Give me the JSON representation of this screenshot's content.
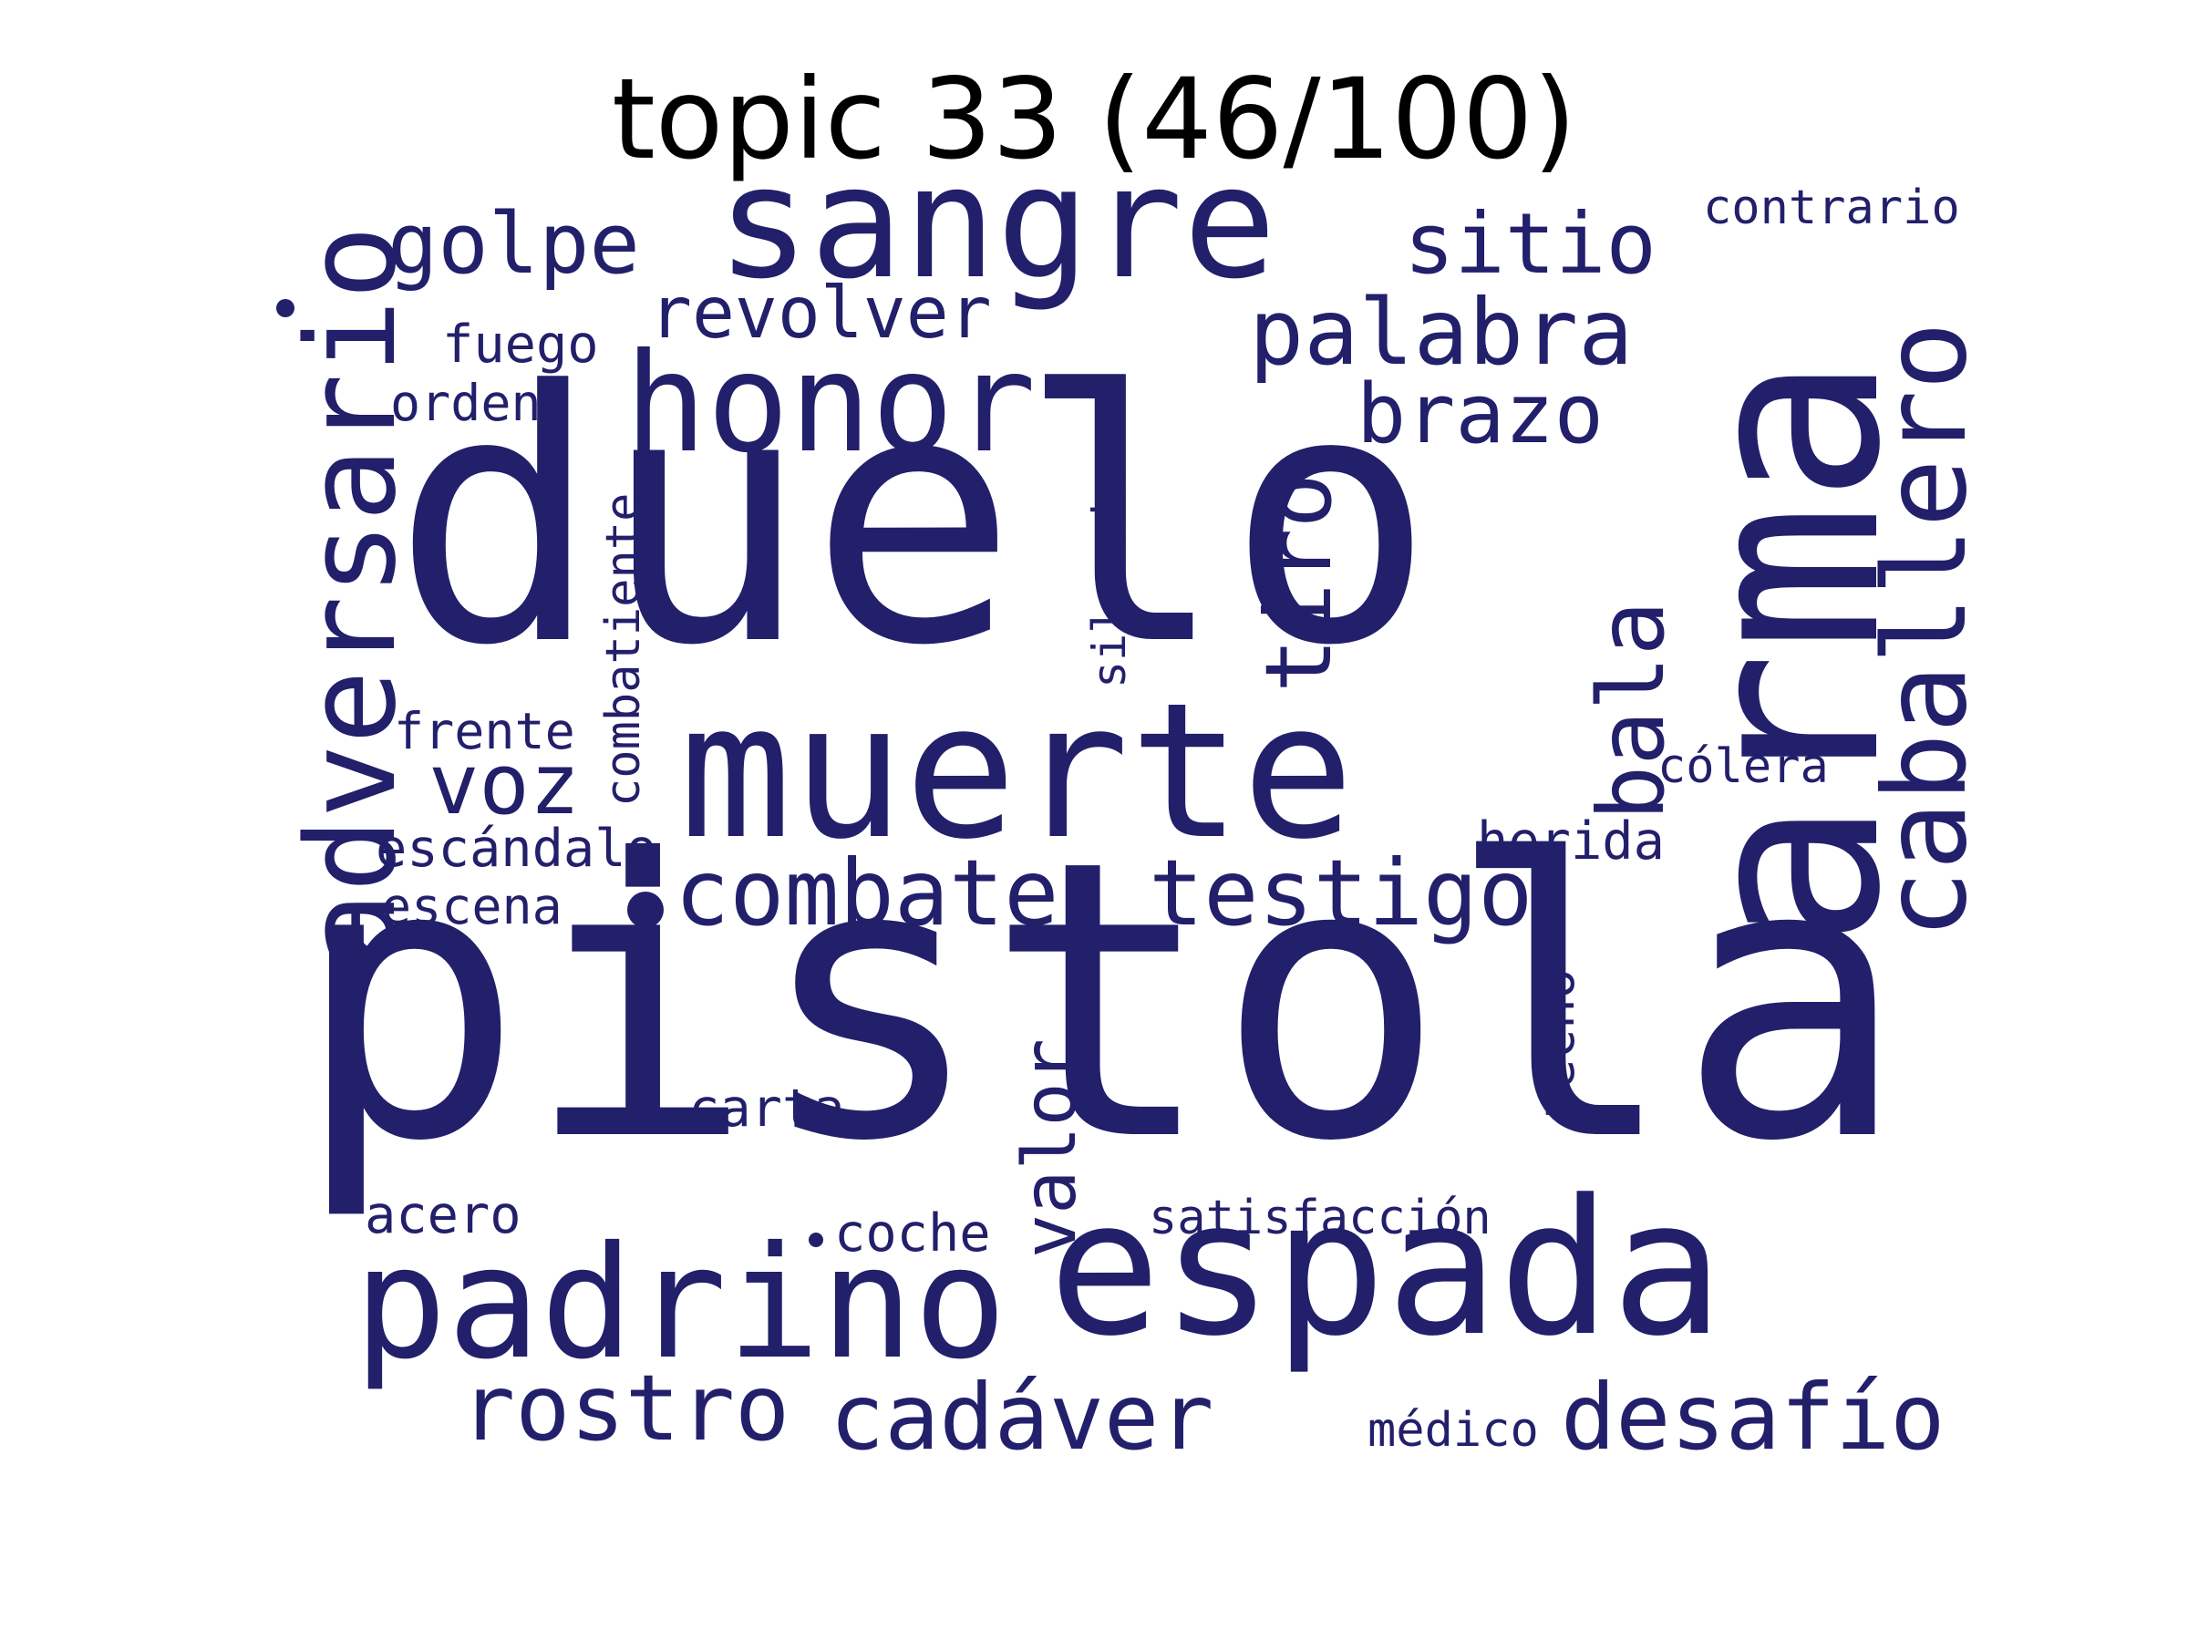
{
  "title": "topic 33 (46/100)",
  "color": "#221f6b",
  "words": {
    "pistola": "pistola",
    "duelo": "duelo",
    "arma": "arma",
    "muerte": "muerte",
    "espada": "espada",
    "padrino": "padrino",
    "sangre": "sangre",
    "honor": "honor",
    "adversario": "adversario",
    "caballero": "caballero",
    "combate": "combate",
    "testigo": "testigo",
    "palabra": "palabra",
    "tiro": "tiro",
    "bala": "bala",
    "rostro": "rostro",
    "cadaver": "cadáver",
    "desafio": "desafío",
    "golpe": "golpe",
    "sitio": "sitio",
    "brazo": "brazo",
    "revolver": "revolver",
    "voz": "voz",
    "valor": "valor",
    "fuego": "fuego",
    "orden": "orden",
    "contrario": "contrario",
    "combatiente": "combatiente",
    "silencio": "silencio",
    "frente": "frente",
    "escandalo": "escándalo",
    "escena": "escena",
    "colera": "cólera",
    "herida": "herida",
    "pecho": "pecho",
    "carta": "carta",
    "acero": "acero",
    "coche": "coche",
    "satisfaccion": "satisfacción",
    "medico": "médico"
  }
}
